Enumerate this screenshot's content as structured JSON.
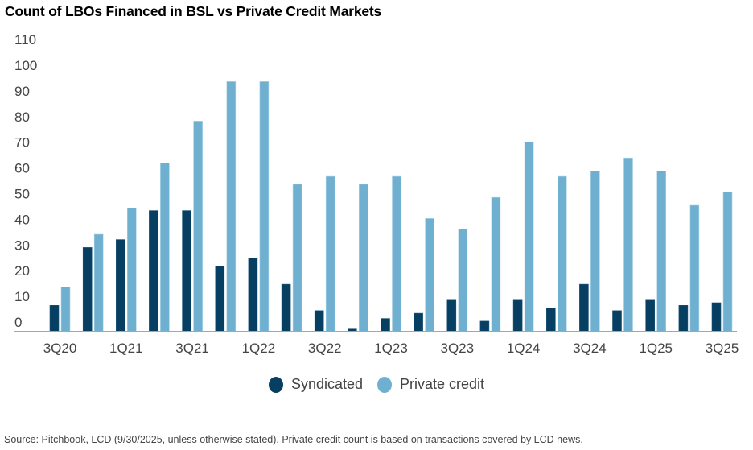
{
  "chart_data": {
    "type": "bar",
    "title": "Count of LBOs Financed in BSL vs Private Credit Markets",
    "xlabel": "",
    "ylabel": "",
    "ylim": [
      0,
      110
    ],
    "yticks": [
      "0",
      "10",
      "20",
      "30",
      "40",
      "50",
      "60",
      "70",
      "80",
      "90",
      "100",
      "110"
    ],
    "categories": [
      "3Q20",
      "4Q20",
      "1Q21",
      "2Q21",
      "3Q21",
      "4Q21",
      "1Q22",
      "2Q22",
      "3Q22",
      "4Q22",
      "1Q23",
      "2Q23",
      "3Q23",
      "4Q23",
      "1Q24",
      "2Q24",
      "3Q24",
      "4Q24",
      "1Q25",
      "2Q25",
      "3Q25"
    ],
    "xtick_labels": [
      "3Q20",
      "1Q21",
      "3Q21",
      "1Q22",
      "3Q22",
      "1Q23",
      "3Q23",
      "1Q24",
      "3Q24",
      "1Q25",
      "3Q25"
    ],
    "series": [
      {
        "name": "Syndicated",
        "color": "#073f63",
        "values": [
          10,
          32,
          35,
          46,
          46,
          25,
          28,
          18,
          8,
          1,
          5,
          7,
          12,
          4,
          12,
          9,
          18,
          8,
          12,
          10,
          11
        ]
      },
      {
        "name": "Private credit",
        "color": "#6fb0d0",
        "values": [
          17,
          37,
          47,
          64,
          80,
          95,
          95,
          56,
          59,
          56,
          59,
          43,
          39,
          51,
          72,
          59,
          61,
          66,
          61,
          48,
          53
        ]
      }
    ],
    "legend_position": "bottom-center",
    "grid": false
  },
  "footer": {
    "source": "Source: Pitchbook, LCD (9/30/2025, unless otherwise stated). Private credit count is based on transactions covered by LCD news."
  }
}
